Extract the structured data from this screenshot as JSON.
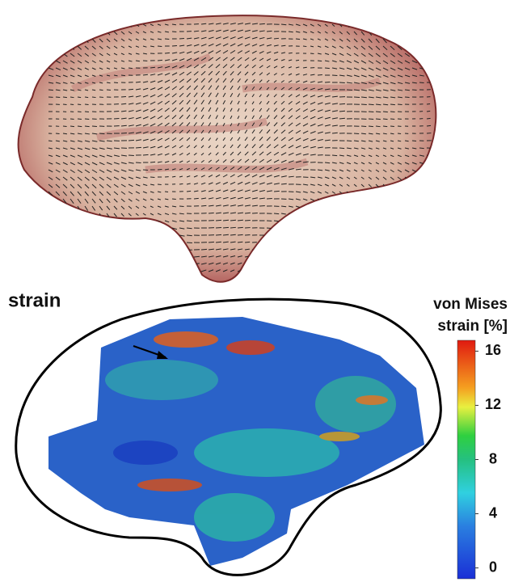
{
  "strain_panel": {
    "label": "strain",
    "colorbar": {
      "title": [
        "von Mises",
        "strain [%]"
      ],
      "lim": [
        -0.8,
        16.8
      ],
      "ticks": [
        0,
        4,
        8,
        12,
        16
      ]
    }
  }
}
